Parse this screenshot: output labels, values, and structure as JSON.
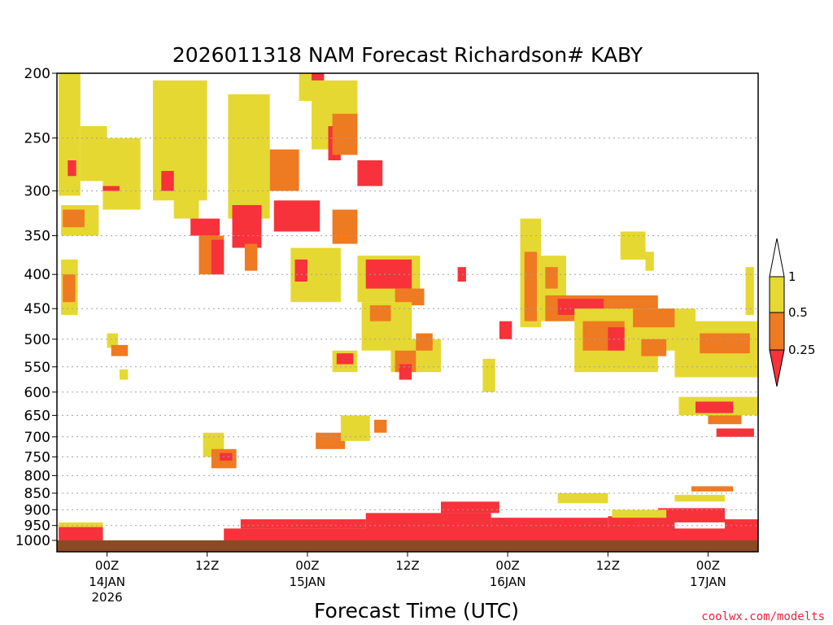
{
  "chart_data": {
    "type": "heatmap",
    "title": "2026011318 NAM Forecast Richardson# KABY",
    "xlabel": "Forecast Time (UTC)",
    "ylabel": "",
    "y_axis": {
      "scale": "log-pressure",
      "unit": "hPa",
      "range": [
        1000,
        200
      ],
      "ticks": [
        200,
        250,
        300,
        350,
        400,
        450,
        500,
        550,
        600,
        650,
        700,
        750,
        800,
        850,
        900,
        950,
        1000
      ]
    },
    "x_axis": {
      "unit": "forecast hours from 2026011318",
      "range": [
        0,
        84
      ],
      "ticks": [
        {
          "hour": 6,
          "label": "00Z",
          "date": "14JAN",
          "year": "2026"
        },
        {
          "hour": 18,
          "label": "12Z",
          "date": "",
          "year": ""
        },
        {
          "hour": 30,
          "label": "00Z",
          "date": "15JAN",
          "year": ""
        },
        {
          "hour": 42,
          "label": "12Z",
          "date": "",
          "year": ""
        },
        {
          "hour": 54,
          "label": "00Z",
          "date": "16JAN",
          "year": ""
        },
        {
          "hour": 66,
          "label": "12Z",
          "date": "",
          "year": ""
        },
        {
          "hour": 78,
          "label": "00Z",
          "date": "17JAN",
          "year": ""
        }
      ]
    },
    "legend": {
      "placement": "right",
      "levels": [
        {
          "label": "1",
          "value": 1
        },
        {
          "label": "0.5",
          "value": 0.5
        },
        {
          "label": "0.25",
          "value": 0.25
        }
      ],
      "colors": {
        "above": "#ffffff",
        "mid_high": "#e6d832",
        "mid_low": "#ee7a22",
        "below": "#f7323a"
      }
    },
    "ground_color": "#8a4a24",
    "colors": {
      "0.25-0.5": "#ee7a22",
      "0.5-1": "#e6d832",
      "<0.25": "#f7323a"
    },
    "regions": [
      {
        "h0": 0.2,
        "h1": 2.8,
        "p0": 200,
        "p1": 305,
        "cat": "0.5-1"
      },
      {
        "h0": 2.8,
        "h1": 6.0,
        "p0": 240,
        "p1": 290,
        "cat": "0.5-1"
      },
      {
        "h0": 0.5,
        "h1": 2.5,
        "p0": 380,
        "p1": 460,
        "cat": "0.5-1"
      },
      {
        "h0": 0.7,
        "h1": 2.2,
        "p0": 400,
        "p1": 440,
        "cat": "0.25-0.5"
      },
      {
        "h0": 0.5,
        "h1": 5.0,
        "p0": 315,
        "p1": 350,
        "cat": "0.5-1"
      },
      {
        "h0": 0.7,
        "h1": 3.3,
        "p0": 320,
        "p1": 340,
        "cat": "0.25-0.5"
      },
      {
        "h0": 1.3,
        "h1": 2.3,
        "p0": 270,
        "p1": 285,
        "cat": "<0.25"
      },
      {
        "h0": 5.5,
        "h1": 10.0,
        "p0": 250,
        "p1": 320,
        "cat": "0.5-1"
      },
      {
        "h0": 5.5,
        "h1": 7.5,
        "p0": 295,
        "p1": 300,
        "cat": "<0.25"
      },
      {
        "h0": 6.0,
        "h1": 7.3,
        "p0": 490,
        "p1": 515,
        "cat": "0.5-1"
      },
      {
        "h0": 6.5,
        "h1": 8.5,
        "p0": 510,
        "p1": 530,
        "cat": "0.25-0.5"
      },
      {
        "h0": 7.5,
        "h1": 8.5,
        "p0": 555,
        "p1": 575,
        "cat": "0.5-1"
      },
      {
        "h0": 11.5,
        "h1": 18.0,
        "p0": 205,
        "p1": 310,
        "cat": "0.5-1"
      },
      {
        "h0": 12.5,
        "h1": 14.0,
        "p0": 280,
        "p1": 300,
        "cat": "<0.25"
      },
      {
        "h0": 14.0,
        "h1": 17.0,
        "p0": 300,
        "p1": 330,
        "cat": "0.5-1"
      },
      {
        "h0": 16.0,
        "h1": 19.5,
        "p0": 330,
        "p1": 350,
        "cat": "<0.25"
      },
      {
        "h0": 17.0,
        "h1": 20.0,
        "p0": 350,
        "p1": 400,
        "cat": "0.25-0.5"
      },
      {
        "h0": 18.5,
        "h1": 20.0,
        "p0": 355,
        "p1": 400,
        "cat": "<0.25"
      },
      {
        "h0": 20.5,
        "h1": 25.5,
        "p0": 215,
        "p1": 330,
        "cat": "0.5-1"
      },
      {
        "h0": 21.0,
        "h1": 24.5,
        "p0": 315,
        "p1": 365,
        "cat": "<0.25"
      },
      {
        "h0": 22.5,
        "h1": 24.0,
        "p0": 360,
        "p1": 395,
        "cat": "0.25-0.5"
      },
      {
        "h0": 25.5,
        "h1": 29.0,
        "p0": 260,
        "p1": 300,
        "cat": "0.25-0.5"
      },
      {
        "h0": 26.0,
        "h1": 31.5,
        "p0": 310,
        "p1": 345,
        "cat": "<0.25"
      },
      {
        "h0": 29.0,
        "h1": 32.0,
        "p0": 200,
        "p1": 220,
        "cat": "0.5-1"
      },
      {
        "h0": 30.5,
        "h1": 32.0,
        "p0": 200,
        "p1": 215,
        "cat": "<0.25"
      },
      {
        "h0": 28.0,
        "h1": 34.0,
        "p0": 365,
        "p1": 440,
        "cat": "0.5-1"
      },
      {
        "h0": 28.5,
        "h1": 30.0,
        "p0": 380,
        "p1": 410,
        "cat": "<0.25"
      },
      {
        "h0": 30.5,
        "h1": 36.0,
        "p0": 205,
        "p1": 260,
        "cat": "0.5-1"
      },
      {
        "h0": 32.5,
        "h1": 34.0,
        "p0": 240,
        "p1": 270,
        "cat": "<0.25"
      },
      {
        "h0": 33.0,
        "h1": 36.0,
        "p0": 230,
        "p1": 265,
        "cat": "0.25-0.5"
      },
      {
        "h0": 36.0,
        "h1": 39.0,
        "p0": 270,
        "p1": 295,
        "cat": "<0.25"
      },
      {
        "h0": 33.0,
        "h1": 36.0,
        "p0": 320,
        "p1": 360,
        "cat": "0.25-0.5"
      },
      {
        "h0": 36.0,
        "h1": 43.5,
        "p0": 375,
        "p1": 440,
        "cat": "0.5-1"
      },
      {
        "h0": 37.0,
        "h1": 42.5,
        "p0": 380,
        "p1": 420,
        "cat": "<0.25"
      },
      {
        "h0": 40.5,
        "h1": 44.0,
        "p0": 420,
        "p1": 445,
        "cat": "0.25-0.5"
      },
      {
        "h0": 36.5,
        "h1": 42.5,
        "p0": 440,
        "p1": 520,
        "cat": "0.5-1"
      },
      {
        "h0": 37.5,
        "h1": 40.0,
        "p0": 445,
        "p1": 470,
        "cat": "0.25-0.5"
      },
      {
        "h0": 33.0,
        "h1": 36.0,
        "p0": 520,
        "p1": 560,
        "cat": "0.5-1"
      },
      {
        "h0": 33.5,
        "h1": 35.5,
        "p0": 525,
        "p1": 545,
        "cat": "<0.25"
      },
      {
        "h0": 40.0,
        "h1": 46.0,
        "p0": 500,
        "p1": 560,
        "cat": "0.5-1"
      },
      {
        "h0": 40.5,
        "h1": 43.0,
        "p0": 520,
        "p1": 560,
        "cat": "0.25-0.5"
      },
      {
        "h0": 41.0,
        "h1": 42.5,
        "p0": 545,
        "p1": 575,
        "cat": "<0.25"
      },
      {
        "h0": 43.0,
        "h1": 45.0,
        "p0": 490,
        "p1": 520,
        "cat": "0.25-0.5"
      },
      {
        "h0": 48.0,
        "h1": 49.0,
        "p0": 390,
        "p1": 410,
        "cat": "<0.25"
      },
      {
        "h0": 51.0,
        "h1": 52.5,
        "p0": 535,
        "p1": 600,
        "cat": "0.5-1"
      },
      {
        "h0": 53.0,
        "h1": 54.5,
        "p0": 470,
        "p1": 500,
        "cat": "<0.25"
      },
      {
        "h0": 55.5,
        "h1": 58.0,
        "p0": 330,
        "p1": 480,
        "cat": "0.5-1"
      },
      {
        "h0": 56.0,
        "h1": 57.5,
        "p0": 370,
        "p1": 470,
        "cat": "0.25-0.5"
      },
      {
        "h0": 57.5,
        "h1": 61.0,
        "p0": 375,
        "p1": 470,
        "cat": "0.5-1"
      },
      {
        "h0": 58.5,
        "h1": 60.0,
        "p0": 390,
        "p1": 420,
        "cat": "0.25-0.5"
      },
      {
        "h0": 58.5,
        "h1": 72.0,
        "p0": 430,
        "p1": 470,
        "cat": "0.25-0.5"
      },
      {
        "h0": 60.0,
        "h1": 65.5,
        "p0": 435,
        "p1": 460,
        "cat": "<0.25"
      },
      {
        "h0": 62.0,
        "h1": 72.0,
        "p0": 450,
        "p1": 560,
        "cat": "0.5-1"
      },
      {
        "h0": 63.0,
        "h1": 68.0,
        "p0": 470,
        "p1": 520,
        "cat": "0.25-0.5"
      },
      {
        "h0": 66.0,
        "h1": 68.0,
        "p0": 480,
        "p1": 520,
        "cat": "<0.25"
      },
      {
        "h0": 68.0,
        "h1": 76.5,
        "p0": 450,
        "p1": 520,
        "cat": "0.5-1"
      },
      {
        "h0": 69.0,
        "h1": 74.0,
        "p0": 450,
        "p1": 480,
        "cat": "0.25-0.5"
      },
      {
        "h0": 70.0,
        "h1": 73.0,
        "p0": 500,
        "p1": 530,
        "cat": "0.25-0.5"
      },
      {
        "h0": 74.0,
        "h1": 84.0,
        "p0": 470,
        "p1": 570,
        "cat": "0.5-1"
      },
      {
        "h0": 77.0,
        "h1": 83.0,
        "p0": 490,
        "p1": 525,
        "cat": "0.25-0.5"
      },
      {
        "h0": 67.5,
        "h1": 70.5,
        "p0": 345,
        "p1": 380,
        "cat": "0.5-1"
      },
      {
        "h0": 70.5,
        "h1": 71.5,
        "p0": 370,
        "p1": 395,
        "cat": "0.5-1"
      },
      {
        "h0": 82.5,
        "h1": 83.5,
        "p0": 390,
        "p1": 460,
        "cat": "0.5-1"
      },
      {
        "h0": 74.5,
        "h1": 84.0,
        "p0": 610,
        "p1": 650,
        "cat": "0.5-1"
      },
      {
        "h0": 76.5,
        "h1": 81.0,
        "p0": 620,
        "p1": 645,
        "cat": "<0.25"
      },
      {
        "h0": 78.0,
        "h1": 82.0,
        "p0": 650,
        "p1": 670,
        "cat": "0.25-0.5"
      },
      {
        "h0": 79.0,
        "h1": 83.5,
        "p0": 680,
        "p1": 700,
        "cat": "<0.25"
      },
      {
        "h0": 17.5,
        "h1": 20.0,
        "p0": 690,
        "p1": 750,
        "cat": "0.5-1"
      },
      {
        "h0": 18.5,
        "h1": 21.5,
        "p0": 730,
        "p1": 780,
        "cat": "0.25-0.5"
      },
      {
        "h0": 19.5,
        "h1": 21.0,
        "p0": 740,
        "p1": 760,
        "cat": "<0.25"
      },
      {
        "h0": 31.0,
        "h1": 34.5,
        "p0": 690,
        "p1": 730,
        "cat": "0.25-0.5"
      },
      {
        "h0": 34.0,
        "h1": 37.5,
        "p0": 650,
        "p1": 710,
        "cat": "0.5-1"
      },
      {
        "h0": 38.0,
        "h1": 39.5,
        "p0": 660,
        "p1": 690,
        "cat": "0.25-0.5"
      },
      {
        "h0": 0.2,
        "h1": 5.5,
        "p0": 955,
        "p1": 1000,
        "cat": "<0.25"
      },
      {
        "h0": 0.2,
        "h1": 5.5,
        "p0": 940,
        "p1": 955,
        "cat": "0.5-1"
      },
      {
        "h0": 20.0,
        "h1": 84.0,
        "p0": 960,
        "p1": 1000,
        "cat": "<0.25"
      },
      {
        "h0": 22.0,
        "h1": 37.0,
        "p0": 930,
        "p1": 960,
        "cat": "<0.25"
      },
      {
        "h0": 37.0,
        "h1": 52.0,
        "p0": 910,
        "p1": 965,
        "cat": "<0.25"
      },
      {
        "h0": 46.0,
        "h1": 53.0,
        "p0": 875,
        "p1": 910,
        "cat": "<0.25"
      },
      {
        "h0": 52.0,
        "h1": 66.0,
        "p0": 925,
        "p1": 975,
        "cat": "<0.25"
      },
      {
        "h0": 66.0,
        "h1": 74.0,
        "p0": 920,
        "p1": 985,
        "cat": "<0.25"
      },
      {
        "h0": 72.0,
        "h1": 80.0,
        "p0": 895,
        "p1": 940,
        "cat": "<0.25"
      },
      {
        "h0": 80.0,
        "h1": 84.0,
        "p0": 930,
        "p1": 985,
        "cat": "<0.25"
      },
      {
        "h0": 66.5,
        "h1": 73.0,
        "p0": 900,
        "p1": 925,
        "cat": "0.5-1"
      },
      {
        "h0": 60.0,
        "h1": 66.0,
        "p0": 850,
        "p1": 880,
        "cat": "0.5-1"
      },
      {
        "h0": 74.0,
        "h1": 80.0,
        "p0": 855,
        "p1": 875,
        "cat": "0.5-1"
      },
      {
        "h0": 76.0,
        "h1": 81.0,
        "p0": 830,
        "p1": 845,
        "cat": "0.25-0.5"
      }
    ]
  },
  "credit": "coolwx.com/modelts",
  "style": {
    "grid_color": "#a0a0a0"
  }
}
